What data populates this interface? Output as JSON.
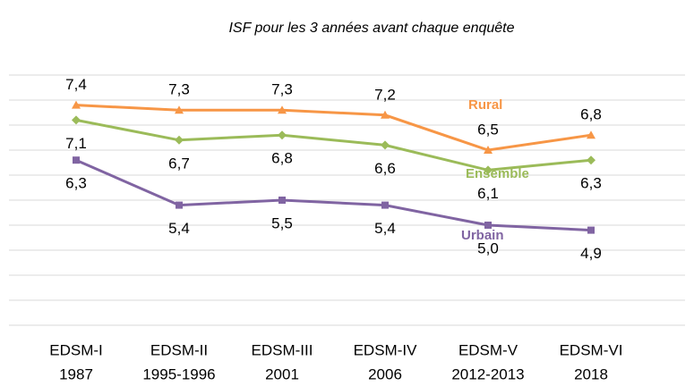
{
  "chart_data": {
    "type": "line",
    "title": "ISF pour les 3 années avant chaque enquête",
    "categories": [
      [
        "EDSM-I",
        "1987"
      ],
      [
        "EDSM-II",
        "1995-1996"
      ],
      [
        "EDSM-III",
        "2001"
      ],
      [
        "EDSM-IV",
        "2006"
      ],
      [
        "EDSM-V",
        "2012-2013"
      ],
      [
        "EDSM-VI",
        "2018"
      ]
    ],
    "ylim": [
      3,
      8
    ],
    "yticks": [
      3,
      3.5,
      4,
      4.5,
      5,
      5.5,
      6,
      6.5,
      7,
      7.5,
      8
    ],
    "grid": true,
    "series": [
      {
        "name": "Rural",
        "color": "#f79646",
        "marker": "triangle",
        "label_side": "above",
        "values": [
          7.4,
          7.3,
          7.3,
          7.2,
          6.5,
          6.8
        ],
        "value_labels": [
          "7,4",
          "7,3",
          "7,3",
          "7,2",
          "6,5",
          "6,8"
        ]
      },
      {
        "name": "Ensemble",
        "color": "#9bbb59",
        "marker": "diamond",
        "label_side": "below",
        "values": [
          7.1,
          6.7,
          6.8,
          6.6,
          6.1,
          6.3
        ],
        "value_labels": [
          "7,1",
          "6,7",
          "6,8",
          "6,6",
          "6,1",
          "6,3"
        ]
      },
      {
        "name": "Urbain",
        "color": "#8064a2",
        "marker": "square",
        "label_side": "below",
        "values": [
          6.3,
          5.4,
          5.5,
          5.4,
          5.0,
          4.9
        ],
        "value_labels": [
          "6,3",
          "5,4",
          "5,5",
          "5,4",
          "5,0",
          "4,9"
        ]
      }
    ]
  }
}
